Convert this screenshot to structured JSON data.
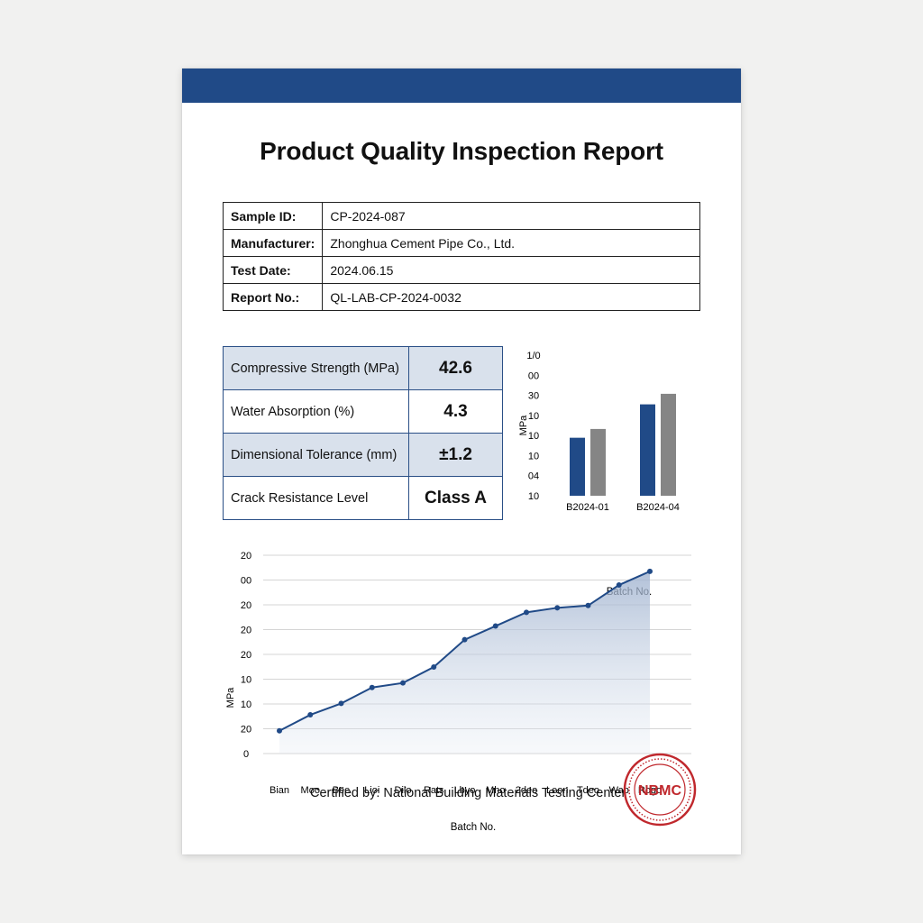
{
  "colors": {
    "brand_blue": "#204a87",
    "bar_gray": "#858585",
    "stamp_red": "#c0282d"
  },
  "report": {
    "title": "Product Quality Inspection Report",
    "info": [
      {
        "label": "Sample ID:",
        "value": "CP-2024-087"
      },
      {
        "label": "Manufacturer:",
        "value": "Zhonghua Cement Pipe Co., Ltd."
      },
      {
        "label": "Test Date:",
        "value": "2024.06.15"
      },
      {
        "label": "Report No.:",
        "value": "QL-LAB-CP-2024-0032"
      }
    ],
    "specs": [
      {
        "label": "Compressive Strength (MPa)",
        "value": "42.6"
      },
      {
        "label": "Water Absorption (%)",
        "value": "4.3"
      },
      {
        "label": "Dimensional Tolerance (mm)",
        "value": "±1.2"
      },
      {
        "label": "Crack Resistance Level",
        "value": "Class A"
      }
    ],
    "certified_by": "Certified by: National Building Materials Testing Center",
    "stamp_text": "NBMC"
  },
  "chart_data": [
    {
      "type": "bar",
      "categories": [
        "B2024-01",
        "B2024-04"
      ],
      "series": [
        {
          "values": [
            33,
            52
          ]
        },
        {
          "values": [
            38,
            58
          ]
        }
      ],
      "ylim": [
        0,
        80
      ],
      "tick_labels": [
        "1/0",
        "00",
        "30",
        "10",
        "10",
        "10",
        "04",
        "10"
      ],
      "xlabel": "Batch No.",
      "ylabel": "MPa",
      "grid": false
    },
    {
      "type": "area",
      "categories": [
        "Bian",
        "Moo",
        "Bee",
        "Lioi",
        "Dilo",
        "Rats",
        "Lbyo",
        "Mho",
        "2deo",
        "Leon",
        "Tdeo",
        "Wab",
        "Rogo"
      ],
      "values": [
        5,
        12,
        17,
        24,
        26,
        33,
        45,
        51,
        57,
        59,
        60,
        69,
        75
      ],
      "ylim": [
        -5,
        90
      ],
      "tick_labels": [
        "20",
        "00",
        "20",
        "20",
        "20",
        "10",
        "10",
        "20",
        "0"
      ],
      "xlabel": "Batch No.",
      "ylabel": "MPa",
      "grid": true
    }
  ]
}
